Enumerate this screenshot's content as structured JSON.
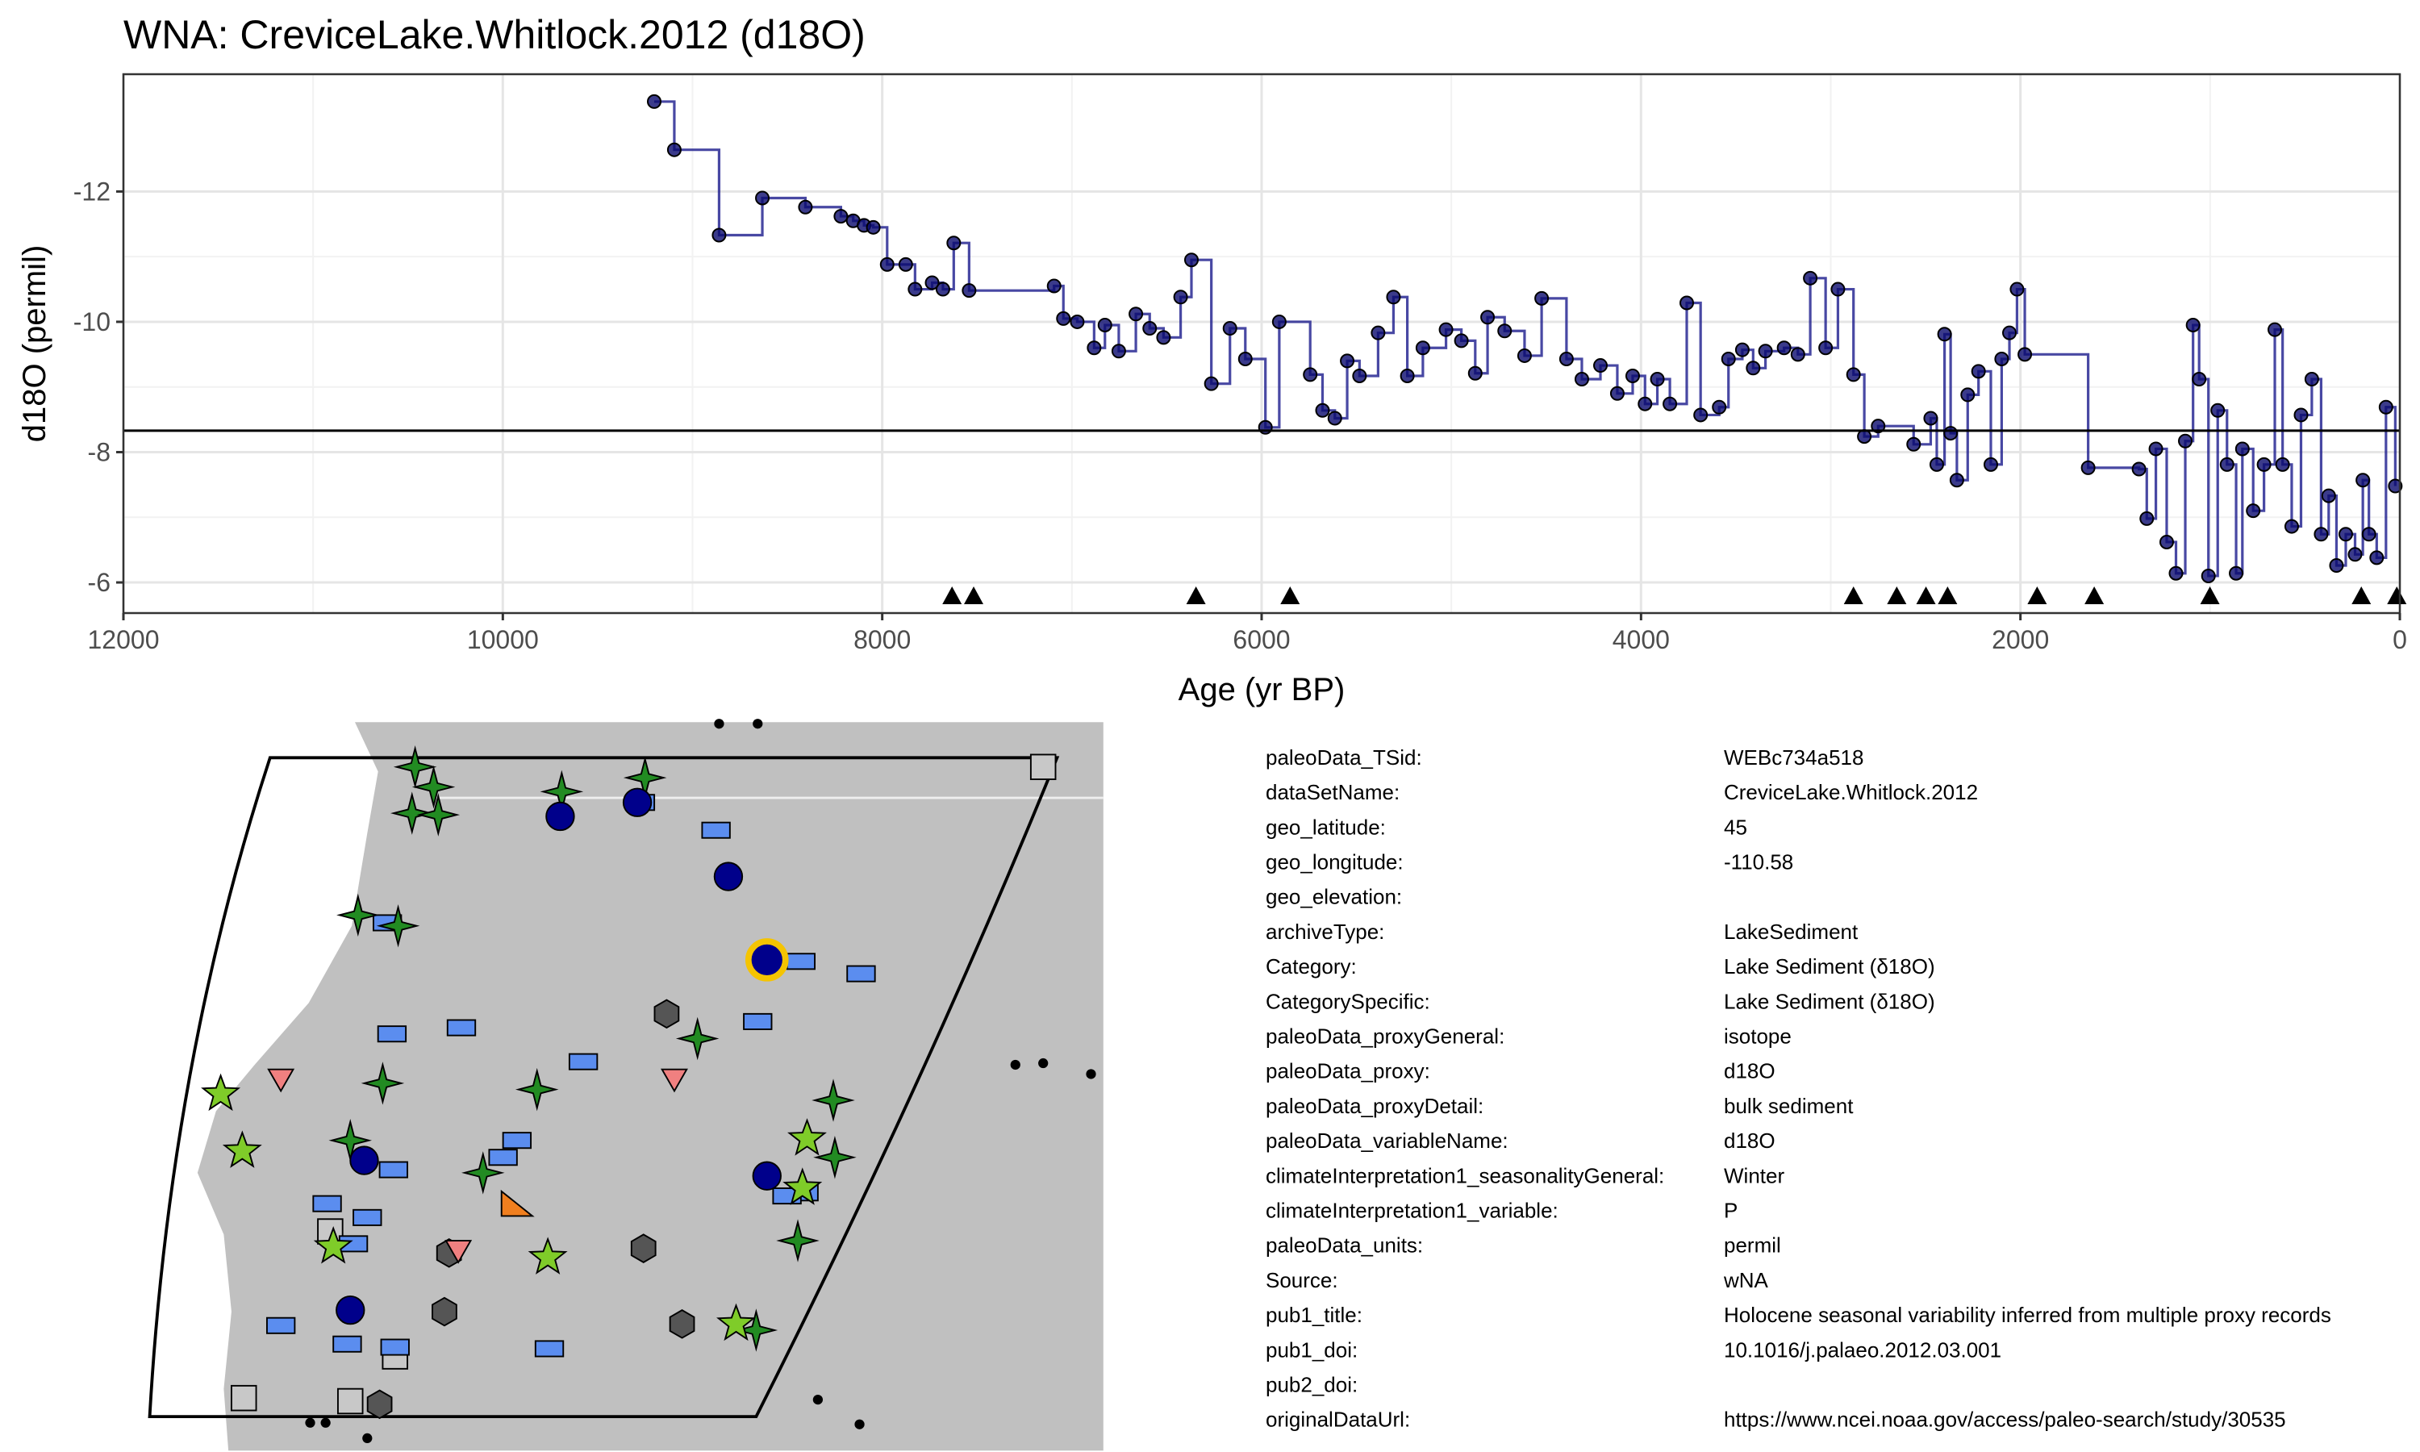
{
  "chart_data": {
    "type": "line",
    "step": true,
    "title": "WNA: CreviceLake.Whitlock.2012 (d18O)",
    "xlabel": "Age (yr BP)",
    "ylabel": "d18O (permil)",
    "xlim": [
      12000,
      0
    ],
    "xticks": [
      12000,
      10000,
      8000,
      6000,
      4000,
      2000,
      0
    ],
    "ylim": [
      -5.53,
      -13.8
    ],
    "yticks": [
      -12,
      -10,
      -8,
      -6
    ],
    "grid": true,
    "color": "#1a1a8c",
    "point_color": "#0a0a6e",
    "hline": -8.33,
    "x": [
      9202,
      9096,
      8860,
      8632,
      8405,
      8218,
      8153,
      8096,
      8047,
      7974,
      7876,
      7827,
      7737,
      7680,
      7623,
      7542,
      7094,
      7045,
      6972,
      6883,
      6826,
      6753,
      6663,
      6590,
      6517,
      6427,
      6370,
      6265,
      6167,
      6086,
      5980,
      5907,
      5744,
      5679,
      5614,
      5549,
      5484,
      5386,
      5305,
      5232,
      5150,
      5028,
      4947,
      4874,
      4809,
      4719,
      4614,
      4524,
      4393,
      4312,
      4214,
      4125,
      4044,
      3979,
      3914,
      3848,
      3759,
      3686,
      3588,
      3539,
      3466,
      3409,
      3344,
      3246,
      3173,
      3108,
      3027,
      2962,
      2880,
      2823,
      2750,
      2563,
      2473,
      2441,
      2400,
      2368,
      2335,
      2278,
      2221,
      2156,
      2099,
      2058,
      2018,
      1977,
      1643,
      1375,
      1334,
      1286,
      1229,
      1180,
      1131,
      1090,
      1058,
      1009,
      960,
      911,
      863,
      830,
      773,
      716,
      659,
      618,
      570,
      521,
      464,
      415,
      375,
      334,
      285,
      236,
      195,
      163,
      122,
      73,
      24
    ],
    "values": [
      -13.38,
      -12.64,
      -11.33,
      -11.9,
      -11.76,
      -11.62,
      -11.55,
      -11.48,
      -11.45,
      -10.88,
      -10.88,
      -10.5,
      -10.6,
      -10.5,
      -11.21,
      -10.48,
      -10.55,
      -10.05,
      -10.0,
      -9.6,
      -9.95,
      -9.55,
      -10.12,
      -9.9,
      -9.76,
      -10.38,
      -10.95,
      -9.05,
      -9.9,
      -9.43,
      -8.38,
      -10.0,
      -9.19,
      -8.64,
      -8.52,
      -9.4,
      -9.17,
      -9.83,
      -10.38,
      -9.17,
      -9.6,
      -9.88,
      -9.71,
      -9.21,
      -10.07,
      -9.86,
      -9.48,
      -10.36,
      -9.43,
      -9.12,
      -9.33,
      -8.9,
      -9.17,
      -8.74,
      -9.12,
      -8.74,
      -10.29,
      -8.57,
      -8.69,
      -9.43,
      -9.57,
      -9.29,
      -9.55,
      -9.6,
      -9.5,
      -10.67,
      -9.6,
      -10.5,
      -9.19,
      -8.24,
      -8.4,
      -8.12,
      -8.52,
      -7.81,
      -9.81,
      -8.29,
      -7.57,
      -8.88,
      -9.24,
      -7.81,
      -9.43,
      -9.83,
      -10.5,
      -9.5,
      -7.76,
      -7.74,
      -6.98,
      -8.05,
      -6.62,
      -6.14,
      -8.17,
      -9.95,
      -9.12,
      -6.1,
      -8.64,
      -7.81,
      -6.14,
      -8.05,
      -7.1,
      -7.81,
      -9.88,
      -7.81,
      -6.86,
      -8.57,
      -9.12,
      -6.74,
      -7.33,
      -6.26,
      -6.74,
      -6.43,
      -7.57,
      -6.74,
      -6.38,
      -8.69,
      -7.48
    ],
    "age_controls": [
      7632,
      7518,
      6346,
      5850,
      2880,
      2652,
      2498,
      2384,
      1912,
      1611,
      1001,
      203,
      16
    ]
  },
  "metadata": {
    "rows": [
      {
        "key": "paleoData_TSid:",
        "value": "WEBc734a518"
      },
      {
        "key": "dataSetName:",
        "value": "CreviceLake.Whitlock.2012"
      },
      {
        "key": "geo_latitude:",
        "value": "45"
      },
      {
        "key": "geo_longitude:",
        "value": "-110.58"
      },
      {
        "key": "geo_elevation:"
      },
      {
        "key": "archiveType:",
        "value": "LakeSediment"
      },
      {
        "key": "Category:",
        "value": "Lake Sediment (δ18O)"
      },
      {
        "key": "CategorySpecific:",
        "value": "Lake Sediment (δ18O)"
      },
      {
        "key": "paleoData_proxyGeneral:",
        "value": "isotope"
      },
      {
        "key": "paleoData_proxy:",
        "value": "d18O"
      },
      {
        "key": "paleoData_proxyDetail:",
        "value": "bulk sediment"
      },
      {
        "key": "paleoData_variableName:",
        "value": "d18O"
      },
      {
        "key": "climateInterpretation1_seasonalityGeneral:",
        "value": "Winter"
      },
      {
        "key": "climateInterpretation1_variable:",
        "value": "P"
      },
      {
        "key": "paleoData_units:",
        "value": "permil"
      },
      {
        "key": "Source:",
        "value": "wNA"
      },
      {
        "key": "pub1_title:",
        "value": "Holocene seasonal variability inferred from multiple proxy records"
      },
      {
        "key": "pub1_doi:",
        "value": "10.1016/j.palaeo.2012.03.001"
      },
      {
        "key": "pub2_doi:"
      },
      {
        "key": "originalDataUrl:",
        "value": "https://www.ncei.noaa.gov/access/paleo-search/study/30535"
      }
    ]
  }
}
